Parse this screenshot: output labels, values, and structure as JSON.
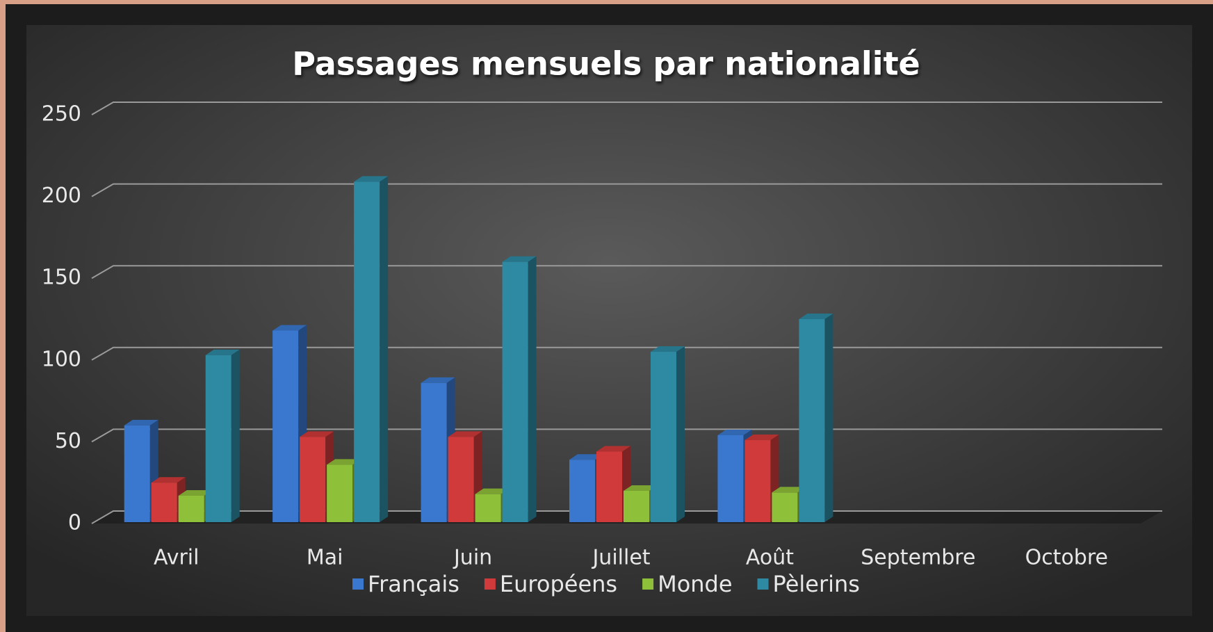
{
  "chart_data": {
    "type": "bar3d",
    "title": "Passages mensuels par nationalité",
    "categories": [
      "Avril",
      "Mai",
      "Juin",
      "Juillet",
      "Août",
      "Septembre",
      "Octobre"
    ],
    "series": [
      {
        "name": "Français",
        "color": "#3a78d0",
        "values": [
          60,
          118,
          86,
          39,
          54,
          null,
          null
        ]
      },
      {
        "name": "Européens",
        "color": "#d03a3a",
        "values": [
          25,
          53,
          53,
          44,
          51,
          null,
          null
        ]
      },
      {
        "name": "Monde",
        "color": "#8fc03a",
        "values": [
          17,
          36,
          18,
          20,
          19,
          null,
          null
        ]
      },
      {
        "name": "Pèlerins",
        "color": "#2e8aa3",
        "values": [
          103,
          209,
          160,
          105,
          125,
          null,
          null
        ]
      }
    ],
    "ylim": [
      0,
      250
    ],
    "yticks": [
      0,
      50,
      100,
      150,
      200,
      250
    ],
    "grid": true,
    "legend": "bottom"
  }
}
